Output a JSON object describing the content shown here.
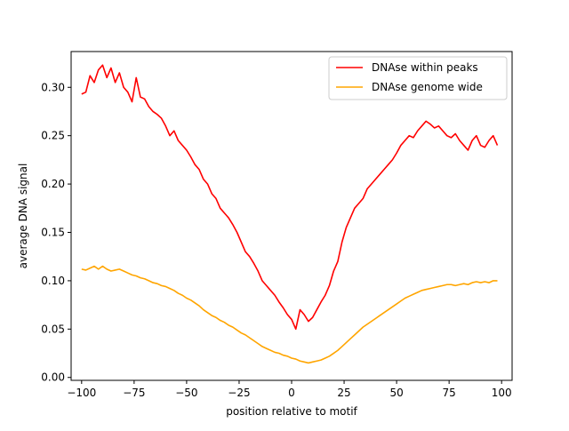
{
  "chart_data": {
    "type": "line",
    "xlabel": "position relative to motif",
    "ylabel": "average DNA signal",
    "xlim": [
      -105,
      105
    ],
    "ylim": [
      -0.003,
      0.337
    ],
    "xticks": [
      -100,
      -75,
      -50,
      -25,
      0,
      25,
      50,
      75,
      100
    ],
    "xtick_labels": [
      "−100",
      "−75",
      "−50",
      "−25",
      "0",
      "25",
      "50",
      "75",
      "100"
    ],
    "yticks": [
      0.0,
      0.05,
      0.1,
      0.15,
      0.2,
      0.25,
      0.3
    ],
    "ytick_labels": [
      "0.00",
      "0.05",
      "0.10",
      "0.15",
      "0.20",
      "0.25",
      "0.30"
    ],
    "grid": false,
    "legend_position": "top-right",
    "series": [
      {
        "name": "DNAse within peaks",
        "color": "#ff0000",
        "x": [
          -100,
          -98,
          -96,
          -94,
          -92,
          -90,
          -88,
          -86,
          -84,
          -82,
          -80,
          -78,
          -76,
          -74,
          -72,
          -70,
          -68,
          -66,
          -64,
          -62,
          -60,
          -58,
          -56,
          -54,
          -52,
          -50,
          -48,
          -46,
          -44,
          -42,
          -40,
          -38,
          -36,
          -34,
          -32,
          -30,
          -28,
          -26,
          -24,
          -22,
          -20,
          -18,
          -16,
          -14,
          -12,
          -10,
          -8,
          -6,
          -4,
          -2,
          0,
          2,
          4,
          6,
          8,
          10,
          12,
          14,
          16,
          18,
          20,
          22,
          24,
          26,
          28,
          30,
          32,
          34,
          36,
          38,
          40,
          42,
          44,
          46,
          48,
          50,
          52,
          54,
          56,
          58,
          60,
          62,
          64,
          66,
          68,
          70,
          72,
          74,
          76,
          78,
          80,
          82,
          84,
          86,
          88,
          90,
          92,
          94,
          96,
          98
        ],
        "values": [
          0.293,
          0.295,
          0.312,
          0.305,
          0.318,
          0.323,
          0.31,
          0.32,
          0.305,
          0.315,
          0.3,
          0.295,
          0.285,
          0.31,
          0.29,
          0.288,
          0.28,
          0.275,
          0.272,
          0.268,
          0.26,
          0.25,
          0.255,
          0.245,
          0.24,
          0.235,
          0.228,
          0.22,
          0.215,
          0.205,
          0.2,
          0.19,
          0.185,
          0.175,
          0.17,
          0.165,
          0.158,
          0.15,
          0.14,
          0.13,
          0.125,
          0.118,
          0.11,
          0.1,
          0.095,
          0.09,
          0.085,
          0.078,
          0.072,
          0.065,
          0.06,
          0.05,
          0.07,
          0.065,
          0.058,
          0.062,
          0.07,
          0.078,
          0.085,
          0.095,
          0.11,
          0.12,
          0.14,
          0.155,
          0.165,
          0.175,
          0.18,
          0.185,
          0.195,
          0.2,
          0.205,
          0.21,
          0.215,
          0.22,
          0.225,
          0.232,
          0.24,
          0.245,
          0.25,
          0.248,
          0.255,
          0.26,
          0.265,
          0.262,
          0.258,
          0.26,
          0.255,
          0.25,
          0.248,
          0.252,
          0.245,
          0.24,
          0.235,
          0.245,
          0.25,
          0.24,
          0.238,
          0.245,
          0.25,
          0.24
        ]
      },
      {
        "name": "DNAse genome wide",
        "color": "#ffa500",
        "x": [
          -100,
          -98,
          -96,
          -94,
          -92,
          -90,
          -88,
          -86,
          -84,
          -82,
          -80,
          -78,
          -76,
          -74,
          -72,
          -70,
          -68,
          -66,
          -64,
          -62,
          -60,
          -58,
          -56,
          -54,
          -52,
          -50,
          -48,
          -46,
          -44,
          -42,
          -40,
          -38,
          -36,
          -34,
          -32,
          -30,
          -28,
          -26,
          -24,
          -22,
          -20,
          -18,
          -16,
          -14,
          -12,
          -10,
          -8,
          -6,
          -4,
          -2,
          0,
          2,
          4,
          6,
          8,
          10,
          12,
          14,
          16,
          18,
          20,
          22,
          24,
          26,
          28,
          30,
          32,
          34,
          36,
          38,
          40,
          42,
          44,
          46,
          48,
          50,
          52,
          54,
          56,
          58,
          60,
          62,
          64,
          66,
          68,
          70,
          72,
          74,
          76,
          78,
          80,
          82,
          84,
          86,
          88,
          90,
          92,
          94,
          96,
          98
        ],
        "values": [
          0.112,
          0.111,
          0.113,
          0.115,
          0.112,
          0.115,
          0.112,
          0.11,
          0.111,
          0.112,
          0.11,
          0.108,
          0.106,
          0.105,
          0.103,
          0.102,
          0.1,
          0.098,
          0.097,
          0.095,
          0.094,
          0.092,
          0.09,
          0.087,
          0.085,
          0.082,
          0.08,
          0.077,
          0.074,
          0.07,
          0.067,
          0.064,
          0.062,
          0.059,
          0.057,
          0.054,
          0.052,
          0.049,
          0.046,
          0.044,
          0.041,
          0.038,
          0.035,
          0.032,
          0.03,
          0.028,
          0.026,
          0.025,
          0.023,
          0.022,
          0.02,
          0.019,
          0.017,
          0.016,
          0.015,
          0.016,
          0.017,
          0.018,
          0.02,
          0.022,
          0.025,
          0.028,
          0.032,
          0.036,
          0.04,
          0.044,
          0.048,
          0.052,
          0.055,
          0.058,
          0.061,
          0.064,
          0.067,
          0.07,
          0.073,
          0.076,
          0.079,
          0.082,
          0.084,
          0.086,
          0.088,
          0.09,
          0.091,
          0.092,
          0.093,
          0.094,
          0.095,
          0.096,
          0.096,
          0.095,
          0.096,
          0.097,
          0.096,
          0.098,
          0.099,
          0.098,
          0.099,
          0.098,
          0.1,
          0.1
        ]
      }
    ]
  }
}
